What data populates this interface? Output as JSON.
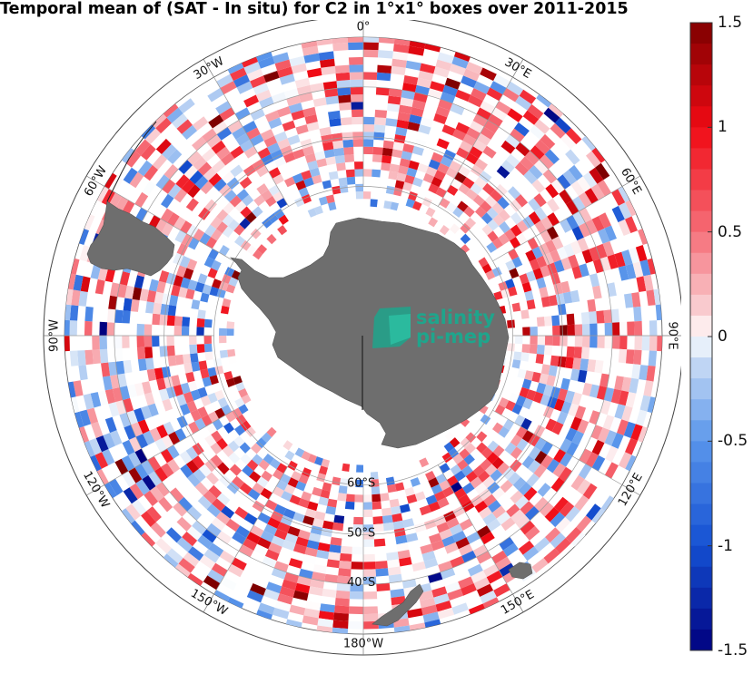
{
  "title": "Temporal mean of (SAT - In situ) for C2 in 1°x1° boxes over 2011-2015",
  "longitude_labels": [
    "0°",
    "30°E",
    "60°E",
    "90°E",
    "120°E",
    "150°E",
    "180°W",
    "150°W",
    "120°W",
    "90°W",
    "60°W",
    "30°W"
  ],
  "latitude_labels": [
    "60°S",
    "50°S",
    "40°S"
  ],
  "logo": {
    "line1": "salinity",
    "line2": "pi-mep"
  },
  "colorbar": {
    "min": -1.5,
    "max": 1.5,
    "ticks": [
      "1.5",
      "1",
      "0.5",
      "0",
      "-0.5",
      "-1",
      "-1.5"
    ],
    "colors": {
      "negative_strong": "#00007f",
      "negative_mid": "#1e6fe0",
      "negative_light": "#c6dcf5",
      "neutral": "#ffffff",
      "positive_light": "#f8c8cc",
      "positive_mid": "#ff2020",
      "positive_strong": "#7f0000"
    }
  },
  "land_color": "#6e6e6e"
}
